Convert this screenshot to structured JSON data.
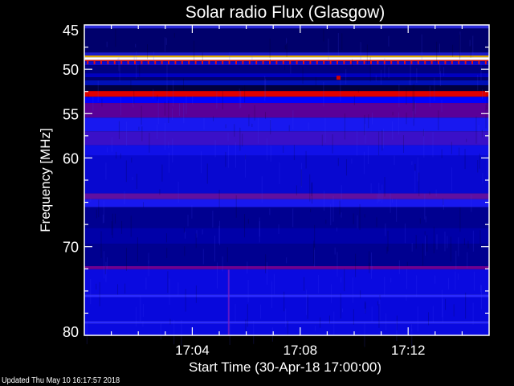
{
  "chart_data": {
    "type": "heatmap",
    "title": "Solar radio Flux (Glasgow)",
    "xlabel": "Start Time (30-Apr-18 17:00:00)",
    "ylabel": "Frequency [MHz]",
    "x_range_minutes_after_17_00": [
      0,
      15
    ],
    "xlim": [
      "17:00",
      "17:15"
    ],
    "ylim": [
      45,
      80
    ],
    "y_inverted": true,
    "x_ticks": {
      "major": [
        "17:04",
        "17:08",
        "17:12"
      ],
      "major_minutes": [
        4,
        8,
        12
      ],
      "minor_interval_minutes": 1
    },
    "y_ticks": {
      "major": [
        45,
        50,
        55,
        60,
        70,
        80
      ],
      "minor_interval_mhz": 2.5
    },
    "colormap": "blue-purple-red-yellow-white (intensity)",
    "bands_mhz": [
      {
        "from": 45.0,
        "to": 45.4,
        "color": "#2a2ad8"
      },
      {
        "from": 45.4,
        "to": 48.1,
        "color": "#00006c"
      },
      {
        "from": 48.1,
        "to": 48.45,
        "color": "#1a1acc"
      },
      {
        "from": 48.45,
        "to": 48.65,
        "color": "#e0a800"
      },
      {
        "from": 48.65,
        "to": 48.95,
        "color": "#ffffff"
      },
      {
        "from": 48.95,
        "to": 49.1,
        "color": "#d01010"
      },
      {
        "from": 49.1,
        "to": 49.55,
        "color": "#0a0ad0"
      },
      {
        "from": 49.55,
        "to": 50.45,
        "color": "#000080"
      },
      {
        "from": 50.45,
        "to": 50.9,
        "color": "#0000c0"
      },
      {
        "from": 50.9,
        "to": 51.25,
        "color": "#000070"
      },
      {
        "from": 51.25,
        "to": 51.8,
        "color": "#0010b8"
      },
      {
        "from": 51.8,
        "to": 52.45,
        "color": "#000040"
      },
      {
        "from": 52.45,
        "to": 53.1,
        "color": "#e00000"
      },
      {
        "from": 53.1,
        "to": 53.8,
        "color": "#0000ff"
      },
      {
        "from": 53.8,
        "to": 55.45,
        "color": "#5a0098"
      },
      {
        "from": 55.45,
        "to": 57.0,
        "color": "#1818f0"
      },
      {
        "from": 57.0,
        "to": 58.55,
        "color": "#3a10c8"
      },
      {
        "from": 58.55,
        "to": 59.73,
        "color": "#1010e8"
      },
      {
        "from": 59.73,
        "to": 64.0,
        "color": "#0808d0"
      },
      {
        "from": 64.0,
        "to": 64.64,
        "color": "#6010a0"
      },
      {
        "from": 64.64,
        "to": 65.55,
        "color": "#1818f0"
      },
      {
        "from": 65.55,
        "to": 67.9,
        "color": "#000090"
      },
      {
        "from": 67.9,
        "to": 69.7,
        "color": "#0000a8"
      },
      {
        "from": 69.7,
        "to": 72.2,
        "color": "#000090"
      },
      {
        "from": 72.2,
        "to": 72.55,
        "color": "#700090"
      },
      {
        "from": 72.55,
        "to": 75.4,
        "color": "#0a0ae0"
      },
      {
        "from": 75.4,
        "to": 75.7,
        "color": "#2a2aff"
      },
      {
        "from": 75.7,
        "to": 78.4,
        "color": "#0808dc"
      },
      {
        "from": 78.4,
        "to": 78.7,
        "color": "#2a2aff"
      },
      {
        "from": 78.7,
        "to": 80.0,
        "color": "#0a0ae0"
      }
    ],
    "periodic_markers": {
      "freq_mhz": 49.25,
      "interval_seconds": 15,
      "color": "#e01010"
    },
    "features": [
      {
        "type": "burst",
        "time": "17:05:21",
        "freq_from": 72.6,
        "freq_to": 80,
        "color": "#8020c0"
      },
      {
        "type": "spot",
        "time": "17:09:26",
        "freq_mhz": 51.0,
        "color": "#d00000"
      }
    ]
  },
  "footer": {
    "updated": "Updated Thu May 10 16:17:57 2018"
  }
}
